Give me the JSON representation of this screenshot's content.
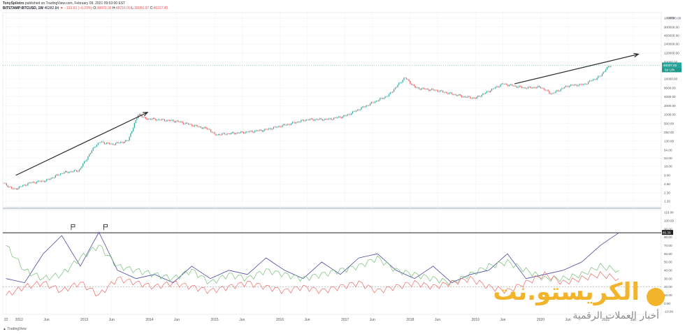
{
  "header": {
    "publisher": "TonySpilotro",
    "published_line": "published on TradingView.com, February 09, 2021 09:53:00 EST",
    "symbol": "BITSTAMP:BTCUSD, 1W",
    "last_price": "46282.84",
    "change": "▼ −133.63 (−0.29%)",
    "ohlc": {
      "o_label": "O:",
      "o": "38870.36",
      "h_label": "H:",
      "h": "48216.09",
      "l_label": "L:",
      "l": "38050.97",
      "c_label": "C:",
      "c": "46337.45"
    }
  },
  "price_axis": {
    "unit": "USD",
    "ticks": [
      "1800000.00",
      "900000.00",
      "460000.00",
      "240000.00",
      "120000.00",
      "60000.00",
      "16000.00",
      "8000.00",
      "4000.00",
      "2000.00",
      "1000.00",
      "500.00",
      "250.00",
      "130.00",
      "64.00",
      "34.00",
      "18.00",
      "9.00",
      "4.50",
      "2.30",
      "1.20"
    ],
    "last_price_label": "46337.45",
    "countdown_label": "5d 10h"
  },
  "osc_axis": {
    "ticks": [
      "110.00",
      "100.00",
      "90.00",
      "80.00",
      "70.00",
      "60.00",
      "50.00",
      "40.00",
      "30.00",
      "20.00",
      "10.00",
      "0.00",
      "-10.00"
    ],
    "level_label": "85.39"
  },
  "time_axis": [
    "22",
    "2012",
    "Jun",
    "2013",
    "Jun",
    "2014",
    "Jun",
    "2015",
    "Jun",
    "2016",
    "Jun",
    "2017",
    "Jun",
    "2018",
    "Jun",
    "2019",
    "Jun",
    "2020",
    "Jun",
    "2021",
    "Jun"
  ],
  "chart_data": [
    {
      "type": "line",
      "title": "BITSTAMP:BTCUSD, 1W",
      "scale": "log",
      "unit": "USD",
      "x": [
        "2011-10",
        "2011-12",
        "2012-03",
        "2012-06",
        "2012-09",
        "2012-12",
        "2013-03",
        "2013-04",
        "2013-06",
        "2013-09",
        "2013-11",
        "2013-12",
        "2014-06",
        "2014-12",
        "2015-01",
        "2015-06",
        "2015-10",
        "2016-06",
        "2016-10",
        "2017-01",
        "2017-06",
        "2017-09",
        "2017-12",
        "2018-02",
        "2018-06",
        "2018-11",
        "2019-01",
        "2019-06",
        "2019-10",
        "2020-01",
        "2020-03",
        "2020-06",
        "2020-09",
        "2020-12",
        "2021-01",
        "2021-02"
      ],
      "series": [
        {
          "values": [
            5,
            3,
            5,
            6,
            11,
            13,
            90,
            120,
            100,
            130,
            1100,
            750,
            600,
            320,
            210,
            250,
            300,
            680,
            700,
            900,
            2500,
            4500,
            18000,
            8000,
            6500,
            4000,
            3600,
            11000,
            8000,
            8500,
            5000,
            9500,
            10500,
            20000,
            35000,
            46337
          ]
        }
      ],
      "annotations": [
        "arrow 2012 → 2014",
        "arrow mid-2019 → 2021"
      ],
      "ylim": [
        1.2,
        1800000
      ],
      "grid": true
    },
    {
      "type": "line",
      "title": "",
      "series": [
        {
          "values": [
            30,
            25,
            60,
            82,
            45,
            86,
            40,
            30,
            35,
            25,
            45,
            30,
            40,
            35,
            55,
            40,
            30,
            50,
            35,
            55,
            60,
            40,
            30,
            45,
            25,
            35,
            40,
            60,
            30,
            35,
            40,
            50,
            70,
            85.39
          ]
        },
        {
          "values": [
            70,
            40,
            30,
            35,
            55,
            70,
            45,
            40,
            35,
            30,
            40,
            25,
            35,
            30,
            40,
            35,
            30,
            35,
            40,
            45,
            55,
            40,
            35,
            30,
            25,
            35,
            45,
            50,
            40,
            30,
            30,
            35,
            45,
            40
          ]
        },
        {
          "values": [
            10,
            20,
            25,
            15,
            25,
            10,
            30,
            25,
            20,
            25,
            20,
            15,
            20,
            25,
            20,
            15,
            20,
            15,
            20,
            25,
            15,
            20,
            25,
            20,
            25,
            30,
            20,
            15,
            25,
            35,
            25,
            30,
            35,
            30
          ]
        }
      ],
      "reference_lines": [
        85.39,
        20
      ],
      "ylim": [
        -10,
        110
      ],
      "grid": true
    }
  ],
  "footer": {
    "brand": "TradingView"
  },
  "watermark": {
    "name": "الكريستو.نت",
    "tagline": "أخبار العملات الرقمية"
  },
  "colors": {
    "up": "#26a69a",
    "down": "#ef5350",
    "osc1": "#4b4aa8",
    "osc2": "#5fb760",
    "osc3": "#ef5350",
    "arrow": "#2a2a2a",
    "grid": "#eef0f4"
  }
}
